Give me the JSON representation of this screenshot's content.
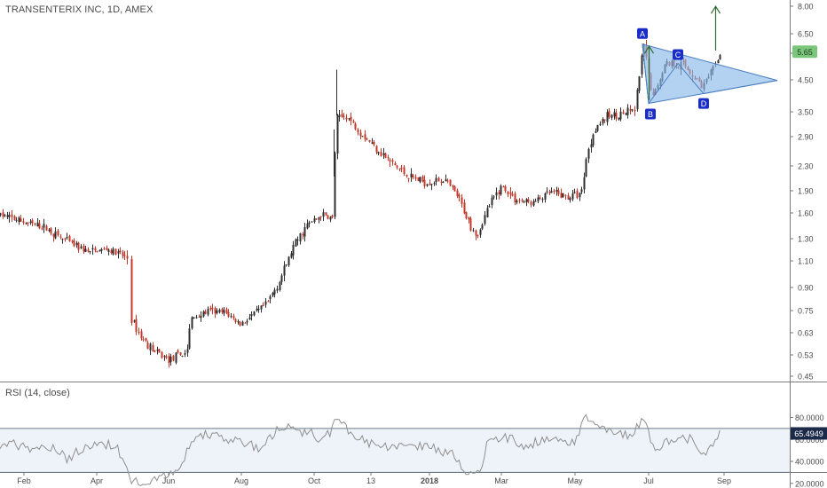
{
  "header": {
    "title": "TRANSENTERIX INC, 1D, AMEX"
  },
  "price_axis": {
    "ticks": [
      "8.00",
      "6.50",
      "5.50",
      "4.50",
      "3.50",
      "2.90",
      "2.30",
      "1.90",
      "1.60",
      "1.30",
      "1.10",
      "0.90",
      "0.75",
      "0.63",
      "0.53",
      "0.45"
    ],
    "last_price": "5.65"
  },
  "rsi_panel": {
    "title": "RSI (14, close)",
    "ticks": [
      "80.0000",
      "60.0000",
      "40.0000",
      "20.0000"
    ],
    "current_value": "65.4949",
    "band_upper": 70,
    "band_lower": 30
  },
  "time_axis": {
    "labels": [
      "Feb",
      "Apr",
      "Jun",
      "Aug",
      "Oct",
      "13",
      "2018",
      "Mar",
      "May",
      "Jul",
      "Sep"
    ]
  },
  "pattern": {
    "points": [
      "A",
      "B",
      "C",
      "D"
    ]
  },
  "colors": {
    "up_candle": "#2f2f2f",
    "down_candle": "#c0392b",
    "triangle_fill": "#8ab8e8",
    "triangle_stroke": "#4a7fc0",
    "point_badge": "#1a2dc8",
    "arrow": "#2e6b2e",
    "last_price_badge": "#7bc67b",
    "rsi_badge": "#1c2a4a",
    "rsi_line": "#8f8f8f"
  },
  "chart_data": {
    "type": "candlestick",
    "title": "TRANSENTERIX INC, 1D, AMEX",
    "y_scale": "log",
    "ylim": [
      0.43,
      8.4
    ],
    "x": [
      "Feb",
      "Apr",
      "Jun",
      "Aug",
      "Oct",
      "13",
      "2018",
      "Mar",
      "May",
      "Jul",
      "Sep"
    ],
    "close_path": [
      [
        0,
        1.55
      ],
      [
        30,
        1.45
      ],
      [
        50,
        1.4
      ],
      [
        70,
        1.28
      ],
      [
        100,
        1.15
      ],
      [
        120,
        1.18
      ],
      [
        143,
        1.1
      ],
      [
        147,
        0.68
      ],
      [
        160,
        0.58
      ],
      [
        175,
        0.52
      ],
      [
        190,
        0.49
      ],
      [
        210,
        0.52
      ],
      [
        215,
        0.68
      ],
      [
        235,
        0.72
      ],
      [
        255,
        0.71
      ],
      [
        270,
        0.65
      ],
      [
        285,
        0.7
      ],
      [
        300,
        0.76
      ],
      [
        315,
        0.92
      ],
      [
        330,
        1.2
      ],
      [
        345,
        1.42
      ],
      [
        362,
        1.55
      ],
      [
        375,
        1.5
      ],
      [
        378,
        3.3
      ],
      [
        390,
        3.4
      ],
      [
        405,
        3.0
      ],
      [
        420,
        2.7
      ],
      [
        440,
        2.35
      ],
      [
        460,
        2.1
      ],
      [
        480,
        2.0
      ],
      [
        500,
        2.05
      ],
      [
        515,
        1.8
      ],
      [
        530,
        1.42
      ],
      [
        538,
        1.32
      ],
      [
        550,
        1.65
      ],
      [
        565,
        1.95
      ],
      [
        580,
        1.75
      ],
      [
        600,
        1.7
      ],
      [
        620,
        1.85
      ],
      [
        640,
        1.78
      ],
      [
        655,
        1.85
      ],
      [
        660,
        2.4
      ],
      [
        670,
        3.1
      ],
      [
        685,
        3.4
      ],
      [
        700,
        3.45
      ],
      [
        715,
        3.55
      ],
      [
        725,
        6.0
      ],
      [
        735,
        3.9
      ],
      [
        750,
        5.2
      ],
      [
        770,
        5.1
      ],
      [
        792,
        4.3
      ],
      [
        805,
        5.0
      ],
      [
        812,
        5.65
      ]
    ],
    "gaps": [
      [
        143,
        147
      ]
    ],
    "rsi_path": [
      [
        0,
        56
      ],
      [
        20,
        55
      ],
      [
        40,
        50
      ],
      [
        60,
        54
      ],
      [
        75,
        42
      ],
      [
        90,
        50
      ],
      [
        110,
        56
      ],
      [
        130,
        54
      ],
      [
        143,
        38
      ],
      [
        147,
        20
      ],
      [
        165,
        22
      ],
      [
        185,
        26
      ],
      [
        205,
        34
      ],
      [
        215,
        60
      ],
      [
        235,
        65
      ],
      [
        255,
        60
      ],
      [
        275,
        56
      ],
      [
        295,
        52
      ],
      [
        315,
        72
      ],
      [
        335,
        68
      ],
      [
        350,
        66
      ],
      [
        360,
        58
      ],
      [
        372,
        66
      ],
      [
        378,
        82
      ],
      [
        395,
        65
      ],
      [
        410,
        58
      ],
      [
        430,
        55
      ],
      [
        450,
        52
      ],
      [
        470,
        55
      ],
      [
        490,
        52
      ],
      [
        510,
        46
      ],
      [
        525,
        30
      ],
      [
        540,
        27
      ],
      [
        550,
        60
      ],
      [
        570,
        62
      ],
      [
        590,
        55
      ],
      [
        610,
        58
      ],
      [
        630,
        60
      ],
      [
        648,
        56
      ],
      [
        660,
        80
      ],
      [
        672,
        72
      ],
      [
        690,
        68
      ],
      [
        710,
        64
      ],
      [
        725,
        78
      ],
      [
        738,
        52
      ],
      [
        760,
        62
      ],
      [
        778,
        60
      ],
      [
        792,
        45
      ],
      [
        806,
        58
      ],
      [
        812,
        65.49
      ]
    ],
    "triangle_pattern": {
      "A": [
        724,
        6.0
      ],
      "B": [
        731,
        3.75
      ],
      "C": [
        764,
        5.15
      ],
      "D": [
        793,
        4.05
      ],
      "apex": [
        876,
        4.5
      ]
    },
    "up_arrows": [
      {
        "x": 731,
        "from": 3.85,
        "to": 5.9
      },
      {
        "x": 806,
        "from": 5.7,
        "to": 8.1
      }
    ]
  }
}
